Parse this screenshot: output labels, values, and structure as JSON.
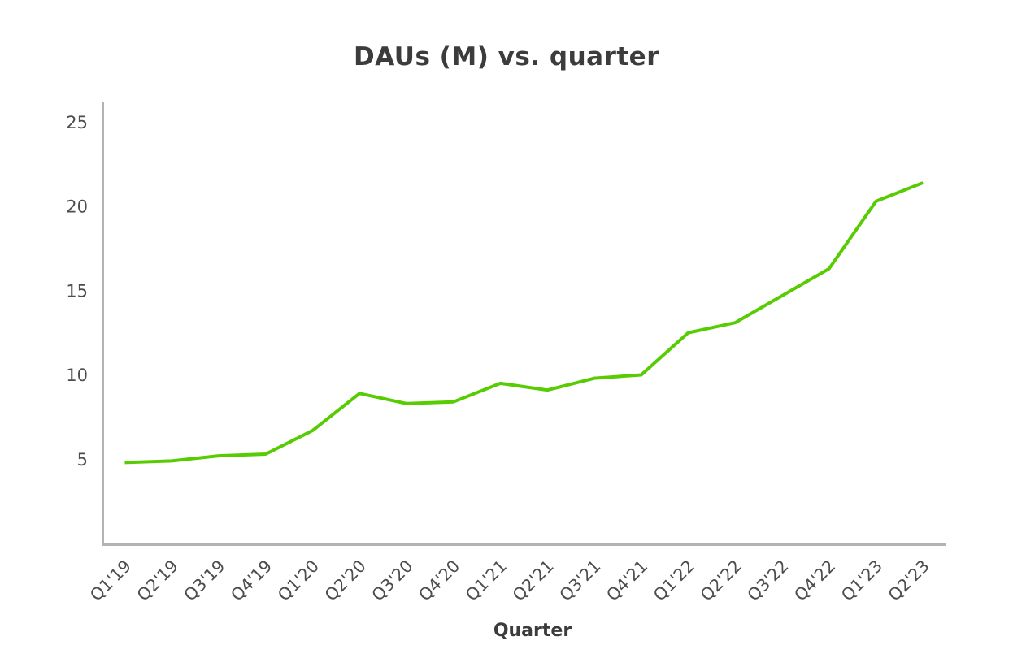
{
  "chart_data": {
    "type": "line",
    "title": "DAUs (M) vs. quarter",
    "xlabel": "Quarter",
    "ylabel": "",
    "categories": [
      "Q1'19",
      "Q2'19",
      "Q3'19",
      "Q4'19",
      "Q1'20",
      "Q2'20",
      "Q3'20",
      "Q4'20",
      "Q1'21",
      "Q2'21",
      "Q3'21",
      "Q4'21",
      "Q1'22",
      "Q2'22",
      "Q3'22",
      "Q4'22",
      "Q1'23",
      "Q2'23"
    ],
    "values": [
      4.8,
      4.9,
      5.2,
      5.3,
      6.7,
      8.9,
      8.3,
      8.4,
      9.5,
      9.1,
      9.8,
      10.0,
      12.5,
      13.1,
      14.7,
      16.3,
      20.3,
      21.4
    ],
    "yticks": [
      5,
      10,
      15,
      20,
      25
    ],
    "ylim": [
      0,
      26.3
    ],
    "grid": "off",
    "legend": "none",
    "x_tick_rotation_degrees": 45,
    "colors": {
      "line": "#58cc02",
      "axis": "#b3b3b3",
      "tick_text": "#4d4d4d",
      "title_text": "#3c3c3c"
    }
  }
}
